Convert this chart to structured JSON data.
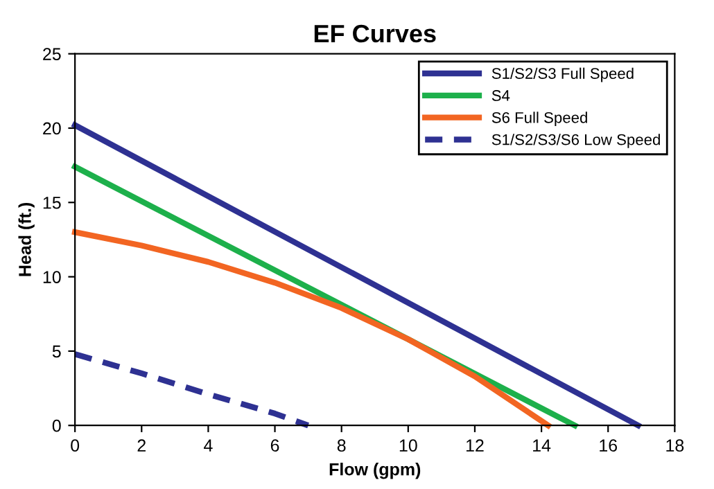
{
  "chart_data": {
    "type": "line",
    "title": "EF Curves",
    "xlabel": "Flow (gpm)",
    "ylabel": "Head (ft.)",
    "xlim": [
      0,
      18
    ],
    "xticks": [
      0,
      2,
      4,
      6,
      8,
      10,
      12,
      14,
      16,
      18
    ],
    "ylim": [
      0,
      25
    ],
    "yticks": [
      0,
      5,
      10,
      15,
      20,
      25
    ],
    "grid": false,
    "legend": "top right",
    "marker": "none",
    "series": [
      {
        "name": "S1/S2/S3 Full Speed",
        "color": "#2e3192",
        "x": [
          0,
          16.9
        ],
        "values": [
          20.2,
          0
        ],
        "line_style": "solid"
      },
      {
        "name": "S4",
        "color": "#1db04b",
        "x": [
          0,
          15
        ],
        "values": [
          17.4,
          0
        ],
        "line_style": "solid"
      },
      {
        "name": "S6 Full Speed",
        "color": "#f26522",
        "x": [
          0,
          2,
          4,
          6,
          8,
          10,
          12,
          14.2
        ],
        "values": [
          13,
          12.1,
          11,
          9.6,
          7.9,
          5.8,
          3.3,
          0
        ],
        "line_style": "solid"
      },
      {
        "name": "S1/S2/S3/S6 Low Speed",
        "color": "#2e3192",
        "x": [
          0,
          2,
          4,
          6,
          7
        ],
        "values": [
          4.8,
          3.5,
          2.1,
          0.8,
          0
        ],
        "line_style": "dashed"
      }
    ]
  }
}
